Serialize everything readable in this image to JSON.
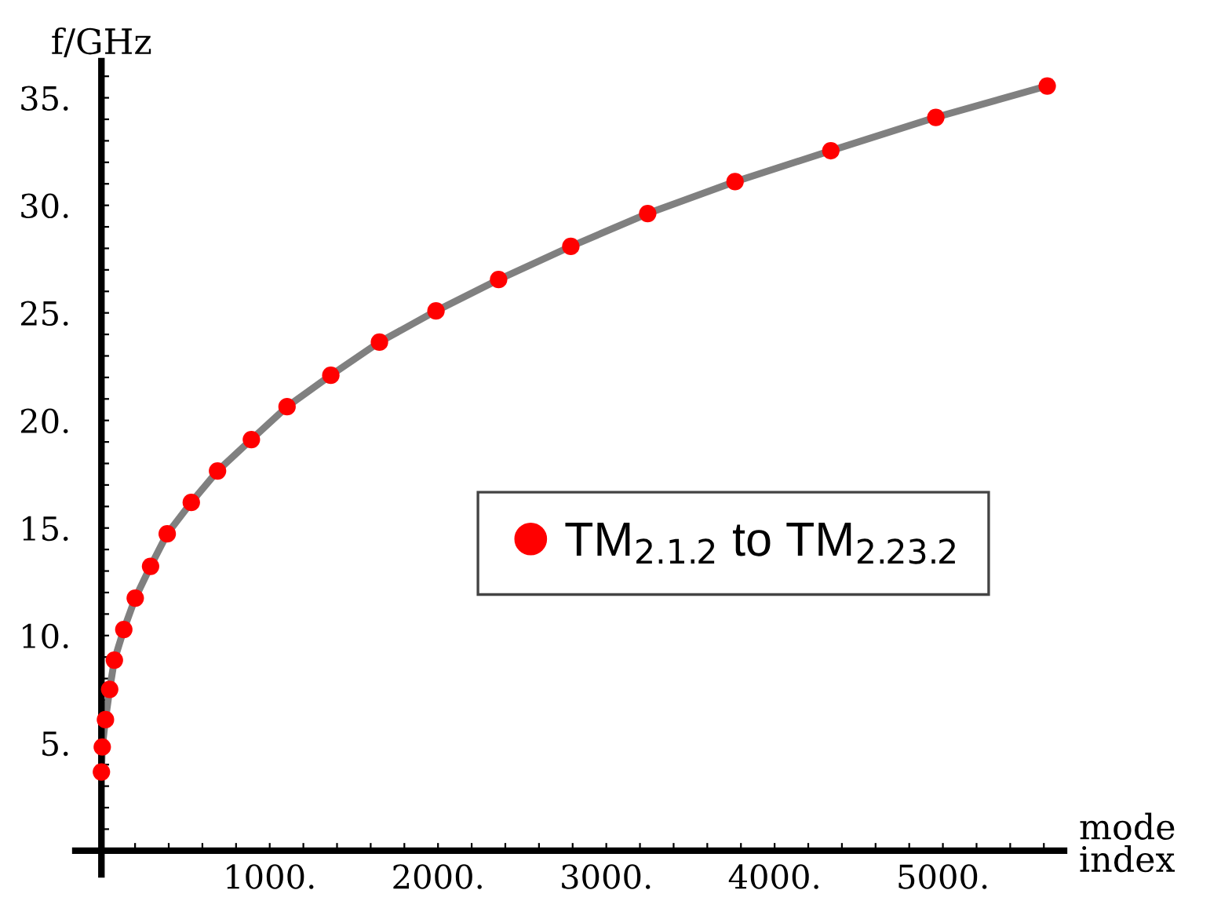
{
  "chart_data": {
    "type": "scatter",
    "xlabel": "mode\nindex",
    "ylabel": "f/GHz",
    "x": [
      0,
      5,
      24,
      49,
      77,
      133,
      201,
      292,
      391,
      534,
      690,
      891,
      1103,
      1363,
      1652,
      1988,
      2360,
      2789,
      3246,
      3765,
      4334,
      4958,
      5620
    ],
    "series": [
      {
        "type": "line",
        "color": "#808080",
        "values": [
          3.66,
          4.82,
          6.09,
          7.5,
          8.86,
          10.28,
          11.74,
          13.22,
          14.73,
          16.19,
          17.65,
          19.11,
          20.64,
          22.1,
          23.64,
          25.09,
          26.55,
          28.09,
          29.62,
          31.1,
          32.54,
          34.09,
          35.55
        ]
      },
      {
        "type": "scatter",
        "marker": "circle",
        "name": "TM$_{2.1.2}$ to TM$_{2.23.2}$",
        "color": "#ff0000",
        "values": [
          3.66,
          4.82,
          6.09,
          7.5,
          8.86,
          10.28,
          11.74,
          13.22,
          14.73,
          16.19,
          17.65,
          19.11,
          20.64,
          22.1,
          23.64,
          25.09,
          26.55,
          28.09,
          29.62,
          31.1,
          32.54,
          34.09,
          35.55
        ]
      }
    ],
    "xlim": [
      -155,
      5720
    ],
    "ylim": [
      -1.1,
      36.7
    ],
    "xticks": [
      {
        "value": 200,
        "label": null
      },
      {
        "value": 400,
        "label": null
      },
      {
        "value": 600,
        "label": null
      },
      {
        "value": 800,
        "label": null
      },
      {
        "value": 1000,
        "label": "1000."
      },
      {
        "value": 1200,
        "label": null
      },
      {
        "value": 1400,
        "label": null
      },
      {
        "value": 1600,
        "label": null
      },
      {
        "value": 1800,
        "label": null
      },
      {
        "value": 2000,
        "label": "2000."
      },
      {
        "value": 2200,
        "label": null
      },
      {
        "value": 2400,
        "label": null
      },
      {
        "value": 2600,
        "label": null
      },
      {
        "value": 2800,
        "label": null
      },
      {
        "value": 3000,
        "label": "3000."
      },
      {
        "value": 3200,
        "label": null
      },
      {
        "value": 3400,
        "label": null
      },
      {
        "value": 3600,
        "label": null
      },
      {
        "value": 3800,
        "label": null
      },
      {
        "value": 4000,
        "label": "4000."
      },
      {
        "value": 4200,
        "label": null
      },
      {
        "value": 4400,
        "label": null
      },
      {
        "value": 4600,
        "label": null
      },
      {
        "value": 4800,
        "label": null
      },
      {
        "value": 5000,
        "label": "5000."
      },
      {
        "value": 5200,
        "label": null
      },
      {
        "value": 5400,
        "label": null
      },
      {
        "value": 5600,
        "label": null
      }
    ],
    "yticks": [
      {
        "value": 1,
        "label": null
      },
      {
        "value": 2,
        "label": null
      },
      {
        "value": 3,
        "label": null
      },
      {
        "value": 4,
        "label": null
      },
      {
        "value": 5,
        "label": "5."
      },
      {
        "value": 6,
        "label": null
      },
      {
        "value": 7,
        "label": null
      },
      {
        "value": 8,
        "label": null
      },
      {
        "value": 9,
        "label": null
      },
      {
        "value": 10,
        "label": "10."
      },
      {
        "value": 11,
        "label": null
      },
      {
        "value": 12,
        "label": null
      },
      {
        "value": 13,
        "label": null
      },
      {
        "value": 14,
        "label": null
      },
      {
        "value": 15,
        "label": "15."
      },
      {
        "value": 16,
        "label": null
      },
      {
        "value": 17,
        "label": null
      },
      {
        "value": 18,
        "label": null
      },
      {
        "value": 19,
        "label": null
      },
      {
        "value": 20,
        "label": "20."
      },
      {
        "value": 21,
        "label": null
      },
      {
        "value": 22,
        "label": null
      },
      {
        "value": 23,
        "label": null
      },
      {
        "value": 24,
        "label": null
      },
      {
        "value": 25,
        "label": "25."
      },
      {
        "value": 26,
        "label": null
      },
      {
        "value": 27,
        "label": null
      },
      {
        "value": 28,
        "label": null
      },
      {
        "value": 29,
        "label": null
      },
      {
        "value": 30,
        "label": "30."
      },
      {
        "value": 31,
        "label": null
      },
      {
        "value": 32,
        "label": null
      },
      {
        "value": 33,
        "label": null
      },
      {
        "value": 34,
        "label": null
      },
      {
        "value": 35,
        "label": "35."
      },
      {
        "value": 36,
        "label": null
      }
    ],
    "grid": false,
    "legend": "right"
  }
}
